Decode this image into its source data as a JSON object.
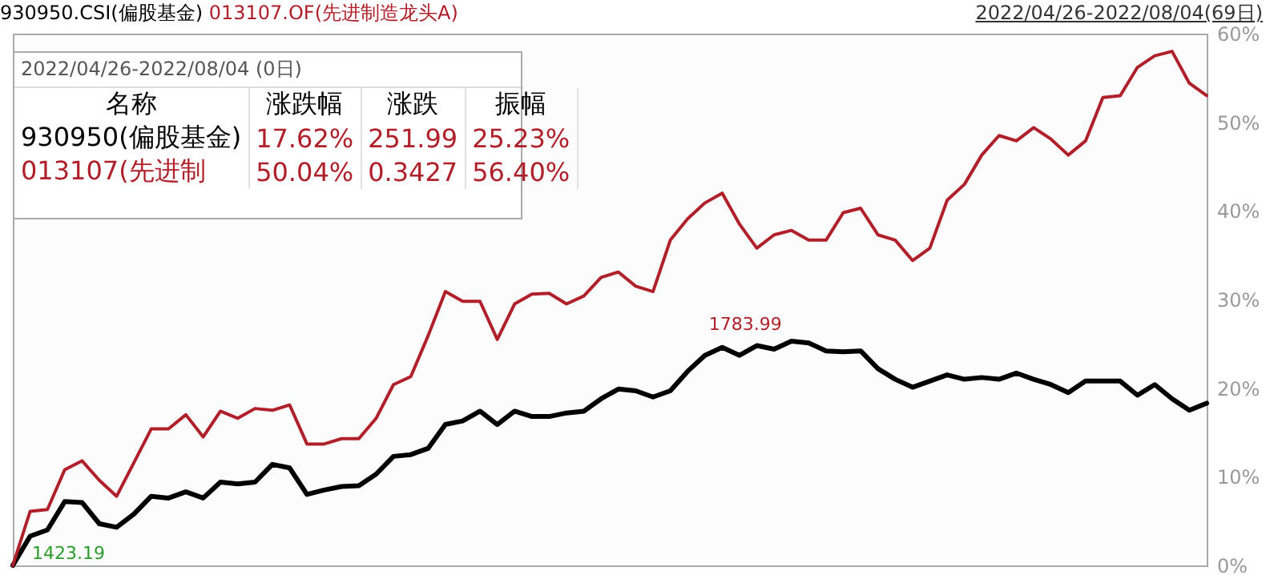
{
  "chart_data": {
    "type": "line",
    "title": "2022/04/26-2022/08/04(69日)",
    "legend": "top left",
    "tick_labels": "y",
    "grid": false,
    "marker": "none",
    "line_style": "solid",
    "categories": [
      null,
      null,
      null,
      null,
      null,
      null,
      null,
      null,
      null,
      null,
      null,
      null,
      null,
      null,
      null,
      null,
      null,
      null,
      null,
      null,
      null,
      null,
      null,
      null,
      null,
      null,
      null,
      null,
      null,
      null,
      null,
      null,
      null,
      null,
      null,
      null,
      null,
      null,
      null,
      null,
      null,
      null,
      null,
      null,
      null,
      null,
      null,
      null,
      null,
      null,
      null,
      null,
      null,
      null,
      null,
      null,
      null,
      null,
      null,
      null,
      null,
      null,
      null,
      null,
      null,
      null,
      null,
      null,
      null,
      null
    ],
    "ylim": [
      0,
      60
    ],
    "yticks": [
      {
        "value": 0,
        "label": "0%"
      },
      {
        "value": 10,
        "label": "10%"
      },
      {
        "value": 20,
        "label": "20%"
      },
      {
        "value": 30,
        "label": "30%"
      },
      {
        "value": 40,
        "label": "40%"
      },
      {
        "value": 50,
        "label": "50%"
      },
      {
        "value": 60,
        "label": "60%"
      }
    ],
    "series": [
      {
        "name": "930950.CSI(偏股基金)",
        "color": "#000000",
        "values": [
          0,
          3.3,
          4.0,
          7.2,
          7.1,
          4.7,
          4.3,
          5.8,
          7.8,
          7.6,
          8.3,
          7.6,
          9.4,
          9.2,
          9.4,
          11.4,
          11.0,
          8.0,
          8.5,
          8.9,
          9.0,
          10.3,
          12.3,
          12.5,
          13.2,
          15.9,
          16.3,
          17.4,
          15.9,
          17.4,
          16.8,
          16.8,
          17.2,
          17.4,
          18.8,
          19.9,
          19.7,
          19.0,
          19.7,
          21.9,
          23.7,
          24.6,
          23.7,
          24.8,
          24.4,
          25.3,
          25.1,
          24.2,
          24.1,
          24.2,
          22.2,
          21.0,
          20.1,
          20.8,
          21.5,
          21.0,
          21.2,
          21.0,
          21.7,
          21.0,
          20.4,
          19.5,
          20.8,
          20.8,
          20.8,
          19.2,
          20.4,
          18.8,
          17.5,
          18.3
        ]
      },
      {
        "name": "013107.OF(先进制造龙头A)",
        "color": "#b0202a",
        "values": [
          0,
          6.1,
          6.3,
          10.8,
          11.8,
          9.6,
          7.8,
          11.6,
          15.4,
          15.4,
          17.0,
          14.5,
          17.4,
          16.6,
          17.7,
          17.5,
          18.1,
          13.7,
          13.7,
          14.3,
          14.3,
          16.6,
          20.4,
          21.3,
          25.9,
          30.9,
          29.8,
          29.8,
          25.5,
          29.5,
          30.6,
          30.7,
          29.5,
          30.4,
          32.5,
          33.1,
          31.5,
          30.9,
          36.7,
          39.1,
          40.9,
          42.0,
          38.5,
          35.8,
          37.3,
          37.8,
          36.7,
          36.7,
          39.8,
          40.3,
          37.3,
          36.7,
          34.4,
          35.8,
          41.2,
          43.0,
          46.3,
          48.5,
          47.9,
          49.4,
          48.1,
          46.3,
          47.9,
          52.8,
          53.0,
          56.2,
          57.5,
          58.0,
          54.4,
          53.0
        ]
      }
    ],
    "annotations": [
      {
        "text": "1783.99",
        "y": 25.3
      },
      "1423.19",
      "2022/04/26-2022/08/04 (0日)",
      "名称\t涨跌幅\t涨跌\t振幅",
      "930950(偏股基金)\t17.62%\t251.99\t25.23%",
      "013107(先进制\t50.04%\t0.3427\t56.40%"
    ]
  }
}
